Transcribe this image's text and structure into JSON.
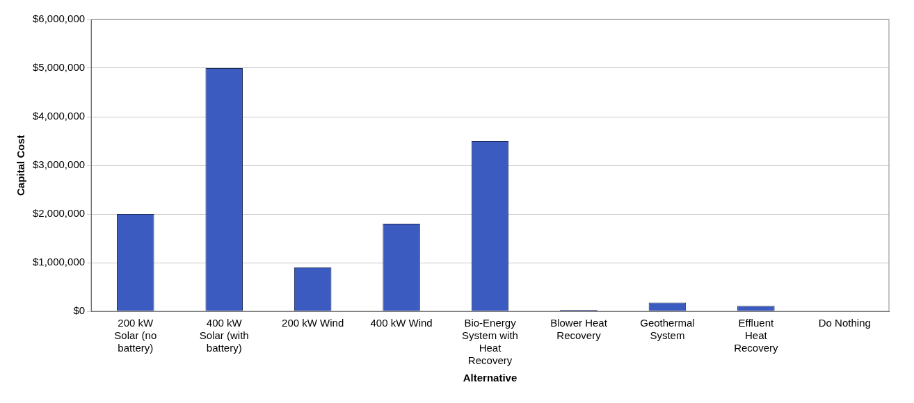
{
  "chart_data": {
    "type": "bar",
    "xlabel": "Alternative",
    "ylabel": "Capital Cost",
    "categories": [
      "200 kW Solar (no battery)",
      "400 kW Solar (with battery)",
      "200 kW Wind",
      "400 kW Wind",
      "Bio-Energy System with Heat Recovery",
      "Blower Heat Recovery",
      "Geothermal System",
      "Effluent Heat Recovery",
      "Do Nothing"
    ],
    "values": [
      2000000,
      5000000,
      900000,
      1800000,
      3500000,
      30000,
      180000,
      110000,
      0
    ],
    "color": "#3b5bc0",
    "ylim": [
      0,
      6000000
    ],
    "yticks": [
      {
        "value": 0,
        "label": "$0"
      },
      {
        "value": 1000000,
        "label": "$1,000,000"
      },
      {
        "value": 2000000,
        "label": "$2,000,000"
      },
      {
        "value": 3000000,
        "label": "$3,000,000"
      },
      {
        "value": 4000000,
        "label": "$4,000,000"
      },
      {
        "value": 5000000,
        "label": "$5,000,000"
      },
      {
        "value": 6000000,
        "label": "$6,000,000"
      }
    ],
    "grid": "y",
    "legend": false
  }
}
